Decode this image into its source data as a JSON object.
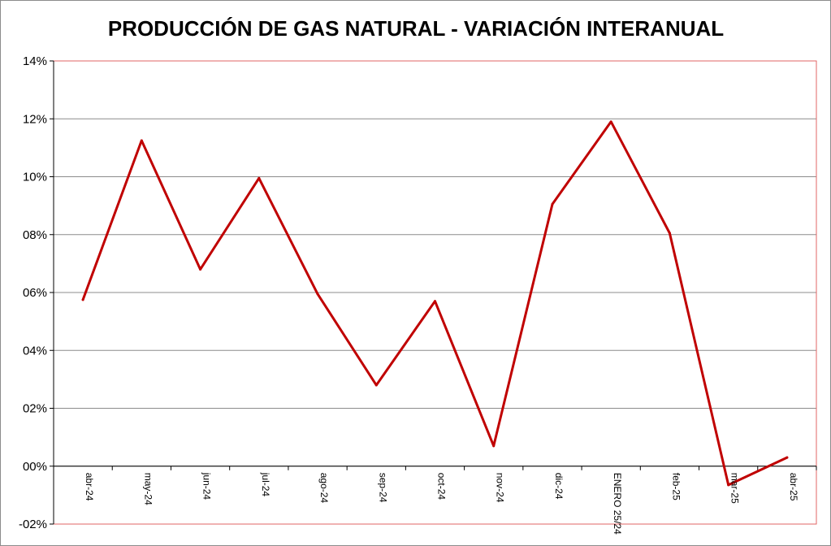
{
  "chart_data": {
    "type": "line",
    "title": "PRODUCCIÓN DE GAS NATURAL - VARIACIÓN INTERANUAL",
    "xlabel": "",
    "ylabel": "",
    "categories": [
      "abr-24",
      "may-24",
      "jun-24",
      "jul-24",
      "ago-24",
      "sep-24",
      "oct-24",
      "nov-24",
      "dic-24",
      "ENERO 25/24",
      "feb-25",
      "mar-25",
      "abr-25"
    ],
    "series": [
      {
        "values": [
          5.75,
          11.25,
          6.8,
          9.95,
          5.95,
          2.8,
          5.7,
          0.7,
          9.05,
          11.9,
          8.05,
          -0.65,
          0.3
        ]
      }
    ],
    "ylim": [
      -2,
      14
    ],
    "yticks": [
      "14%",
      "12%",
      "10%",
      "08%",
      "06%",
      "04%",
      "02%",
      "00%",
      "-02%"
    ],
    "grid": true,
    "legend": "none",
    "colors": {
      "line": "#C00000",
      "plot_border": "#E06666",
      "grid": "#8C8C8C",
      "axis": "#000000"
    }
  }
}
